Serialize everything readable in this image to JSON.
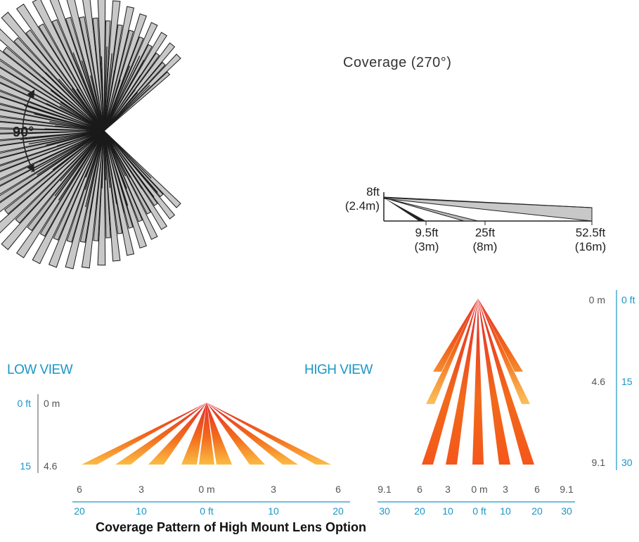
{
  "top_diagram": {
    "title": "Coverage (270°)",
    "angle_label": "90°"
  },
  "side_profile": {
    "height_ft": "8ft",
    "height_m": "(2.4m)",
    "distances": [
      {
        "ft": "9.5ft",
        "m": "(3m)"
      },
      {
        "ft": "25ft",
        "m": "(8m)"
      },
      {
        "ft": "52.5ft",
        "m": "(16m)"
      }
    ]
  },
  "low_view": {
    "title": "LOW VIEW",
    "ft_top": "0 ft",
    "m_top": "0 m",
    "ft_bottom": "15",
    "m_bottom": "4.6",
    "m_ticks": [
      "6",
      "3",
      "0 m",
      "3",
      "6"
    ],
    "ft_ticks": [
      "20",
      "10",
      "0 ft",
      "10",
      "20"
    ]
  },
  "high_view": {
    "title": "HIGH VIEW",
    "m_ticks": [
      "9.1",
      "6",
      "3",
      "0 m",
      "3",
      "6",
      "9.1"
    ],
    "ft_ticks": [
      "30",
      "20",
      "10",
      "0 ft",
      "10",
      "20",
      "30"
    ],
    "side_m": [
      "0 m",
      "4.6",
      "9.1"
    ],
    "side_ft": [
      "0 ft",
      "15",
      "30"
    ]
  },
  "caption": "Coverage Pattern of High Mount Lens Option",
  "colors": {
    "accent_blue": "#1a96c6",
    "beam_red": "#e52a2a",
    "beam_orange": "#f26a1b",
    "beam_yellow": "#fbbb44",
    "sector_grey": "#c8c8c8"
  }
}
